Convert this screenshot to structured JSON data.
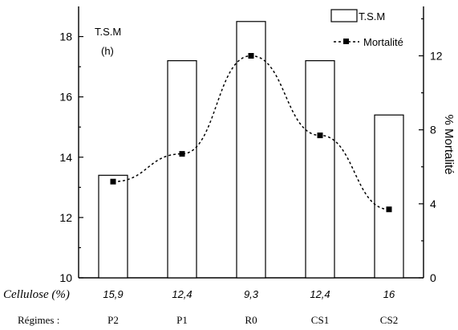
{
  "chart_data": {
    "type": "bar",
    "categories": [
      "P2",
      "P1",
      "R0",
      "CS1",
      "CS2"
    ],
    "cellulose_row_label": "Cellulose (%)",
    "cellulose_values": [
      "15,9",
      "12,4",
      "9,3",
      "12,4",
      "16"
    ],
    "regimes_row_label": "Régimes :",
    "left_axis": {
      "label_line1": "T.S.M",
      "label_line2": "(h)",
      "ylim": [
        10,
        19
      ],
      "ticks": [
        10,
        12,
        14,
        16,
        18
      ]
    },
    "right_axis": {
      "label": "% Mortalité",
      "ylim": [
        0,
        14.67
      ],
      "ticks": [
        0,
        4,
        8,
        12
      ]
    },
    "series": [
      {
        "name": "T.S.M",
        "type": "bar",
        "axis": "left",
        "values": [
          13.4,
          17.2,
          18.5,
          17.2,
          15.4
        ]
      },
      {
        "name": "Mortalité",
        "type": "line",
        "axis": "right",
        "values": [
          5.2,
          6.7,
          12.0,
          7.7,
          3.7
        ]
      }
    ],
    "legend_position": "top-right"
  }
}
